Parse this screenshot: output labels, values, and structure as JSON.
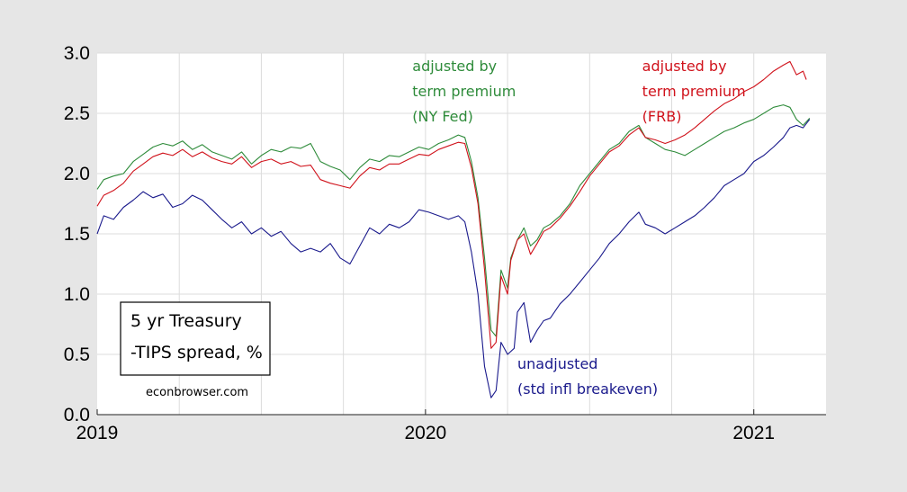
{
  "chart_data": {
    "type": "line",
    "xlim": [
      2019.0,
      2021.22
    ],
    "ylim": [
      0.0,
      3.0
    ],
    "grid": true,
    "x_ticks": [
      {
        "value": 2019,
        "label": "2019"
      },
      {
        "value": 2020,
        "label": "2020"
      },
      {
        "value": 2021,
        "label": "2021"
      }
    ],
    "y_ticks": [
      {
        "value": 0.0,
        "label": "0.0"
      },
      {
        "value": 0.5,
        "label": "0.5"
      },
      {
        "value": 1.0,
        "label": "1.0"
      },
      {
        "value": 1.5,
        "label": "1.5"
      },
      {
        "value": 2.0,
        "label": "2.0"
      },
      {
        "value": 2.5,
        "label": "2.5"
      },
      {
        "value": 3.0,
        "label": "3.0"
      }
    ],
    "series": [
      {
        "name": "adjusted by term premium (NY Fed)",
        "color": "#2e8b3a",
        "points": [
          [
            2019.0,
            1.87
          ],
          [
            2019.02,
            1.95
          ],
          [
            2019.05,
            1.98
          ],
          [
            2019.08,
            2.0
          ],
          [
            2019.11,
            2.1
          ],
          [
            2019.14,
            2.16
          ],
          [
            2019.17,
            2.22
          ],
          [
            2019.2,
            2.25
          ],
          [
            2019.23,
            2.23
          ],
          [
            2019.26,
            2.27
          ],
          [
            2019.29,
            2.2
          ],
          [
            2019.32,
            2.24
          ],
          [
            2019.35,
            2.18
          ],
          [
            2019.38,
            2.15
          ],
          [
            2019.41,
            2.12
          ],
          [
            2019.44,
            2.18
          ],
          [
            2019.47,
            2.08
          ],
          [
            2019.5,
            2.15
          ],
          [
            2019.53,
            2.2
          ],
          [
            2019.56,
            2.18
          ],
          [
            2019.59,
            2.22
          ],
          [
            2019.62,
            2.21
          ],
          [
            2019.65,
            2.25
          ],
          [
            2019.68,
            2.1
          ],
          [
            2019.71,
            2.06
          ],
          [
            2019.74,
            2.03
          ],
          [
            2019.77,
            1.95
          ],
          [
            2019.8,
            2.05
          ],
          [
            2019.83,
            2.12
          ],
          [
            2019.86,
            2.1
          ],
          [
            2019.89,
            2.15
          ],
          [
            2019.92,
            2.14
          ],
          [
            2019.95,
            2.18
          ],
          [
            2019.98,
            2.22
          ],
          [
            2020.01,
            2.2
          ],
          [
            2020.04,
            2.25
          ],
          [
            2020.07,
            2.28
          ],
          [
            2020.1,
            2.32
          ],
          [
            2020.12,
            2.3
          ],
          [
            2020.14,
            2.1
          ],
          [
            2020.16,
            1.8
          ],
          [
            2020.18,
            1.3
          ],
          [
            2020.2,
            0.7
          ],
          [
            2020.215,
            0.65
          ],
          [
            2020.23,
            1.2
          ],
          [
            2020.25,
            1.05
          ],
          [
            2020.26,
            1.3
          ],
          [
            2020.28,
            1.45
          ],
          [
            2020.3,
            1.55
          ],
          [
            2020.32,
            1.4
          ],
          [
            2020.34,
            1.45
          ],
          [
            2020.36,
            1.55
          ],
          [
            2020.38,
            1.58
          ],
          [
            2020.41,
            1.65
          ],
          [
            2020.44,
            1.75
          ],
          [
            2020.47,
            1.9
          ],
          [
            2020.5,
            2.0
          ],
          [
            2020.53,
            2.1
          ],
          [
            2020.56,
            2.2
          ],
          [
            2020.59,
            2.25
          ],
          [
            2020.62,
            2.35
          ],
          [
            2020.65,
            2.4
          ],
          [
            2020.67,
            2.3
          ],
          [
            2020.7,
            2.25
          ],
          [
            2020.73,
            2.2
          ],
          [
            2020.76,
            2.18
          ],
          [
            2020.79,
            2.15
          ],
          [
            2020.82,
            2.2
          ],
          [
            2020.85,
            2.25
          ],
          [
            2020.88,
            2.3
          ],
          [
            2020.91,
            2.35
          ],
          [
            2020.94,
            2.38
          ],
          [
            2020.97,
            2.42
          ],
          [
            2021.0,
            2.45
          ],
          [
            2021.03,
            2.5
          ],
          [
            2021.06,
            2.55
          ],
          [
            2021.09,
            2.57
          ],
          [
            2021.11,
            2.55
          ],
          [
            2021.13,
            2.45
          ],
          [
            2021.15,
            2.4
          ],
          [
            2021.17,
            2.46
          ]
        ]
      },
      {
        "name": "adjusted by term premium (FRB)",
        "color": "#d0121b",
        "points": [
          [
            2019.0,
            1.73
          ],
          [
            2019.02,
            1.82
          ],
          [
            2019.05,
            1.86
          ],
          [
            2019.08,
            1.92
          ],
          [
            2019.11,
            2.02
          ],
          [
            2019.14,
            2.08
          ],
          [
            2019.17,
            2.14
          ],
          [
            2019.2,
            2.17
          ],
          [
            2019.23,
            2.15
          ],
          [
            2019.26,
            2.2
          ],
          [
            2019.29,
            2.14
          ],
          [
            2019.32,
            2.18
          ],
          [
            2019.35,
            2.13
          ],
          [
            2019.38,
            2.1
          ],
          [
            2019.41,
            2.08
          ],
          [
            2019.44,
            2.14
          ],
          [
            2019.47,
            2.05
          ],
          [
            2019.5,
            2.1
          ],
          [
            2019.53,
            2.12
          ],
          [
            2019.56,
            2.08
          ],
          [
            2019.59,
            2.1
          ],
          [
            2019.62,
            2.06
          ],
          [
            2019.65,
            2.07
          ],
          [
            2019.68,
            1.95
          ],
          [
            2019.71,
            1.92
          ],
          [
            2019.74,
            1.9
          ],
          [
            2019.77,
            1.88
          ],
          [
            2019.8,
            1.98
          ],
          [
            2019.83,
            2.05
          ],
          [
            2019.86,
            2.03
          ],
          [
            2019.89,
            2.08
          ],
          [
            2019.92,
            2.08
          ],
          [
            2019.95,
            2.12
          ],
          [
            2019.98,
            2.16
          ],
          [
            2020.01,
            2.15
          ],
          [
            2020.04,
            2.2
          ],
          [
            2020.07,
            2.23
          ],
          [
            2020.1,
            2.26
          ],
          [
            2020.12,
            2.25
          ],
          [
            2020.14,
            2.05
          ],
          [
            2020.16,
            1.75
          ],
          [
            2020.18,
            1.2
          ],
          [
            2020.2,
            0.55
          ],
          [
            2020.215,
            0.6
          ],
          [
            2020.23,
            1.15
          ],
          [
            2020.25,
            1.0
          ],
          [
            2020.26,
            1.28
          ],
          [
            2020.28,
            1.45
          ],
          [
            2020.3,
            1.5
          ],
          [
            2020.32,
            1.33
          ],
          [
            2020.34,
            1.42
          ],
          [
            2020.36,
            1.52
          ],
          [
            2020.38,
            1.55
          ],
          [
            2020.41,
            1.63
          ],
          [
            2020.44,
            1.73
          ],
          [
            2020.47,
            1.85
          ],
          [
            2020.5,
            1.98
          ],
          [
            2020.53,
            2.08
          ],
          [
            2020.56,
            2.18
          ],
          [
            2020.59,
            2.23
          ],
          [
            2020.62,
            2.32
          ],
          [
            2020.65,
            2.38
          ],
          [
            2020.67,
            2.3
          ],
          [
            2020.7,
            2.28
          ],
          [
            2020.73,
            2.25
          ],
          [
            2020.76,
            2.28
          ],
          [
            2020.79,
            2.32
          ],
          [
            2020.82,
            2.38
          ],
          [
            2020.85,
            2.45
          ],
          [
            2020.88,
            2.52
          ],
          [
            2020.91,
            2.58
          ],
          [
            2020.94,
            2.62
          ],
          [
            2020.97,
            2.68
          ],
          [
            2021.0,
            2.72
          ],
          [
            2021.03,
            2.78
          ],
          [
            2021.06,
            2.85
          ],
          [
            2021.09,
            2.9
          ],
          [
            2021.11,
            2.93
          ],
          [
            2021.13,
            2.82
          ],
          [
            2021.15,
            2.85
          ],
          [
            2021.16,
            2.78
          ]
        ]
      },
      {
        "name": "unadjusted (std infl breakeven)",
        "color": "#1a1a8c",
        "points": [
          [
            2019.0,
            1.5
          ],
          [
            2019.02,
            1.65
          ],
          [
            2019.05,
            1.62
          ],
          [
            2019.08,
            1.72
          ],
          [
            2019.11,
            1.78
          ],
          [
            2019.14,
            1.85
          ],
          [
            2019.17,
            1.8
          ],
          [
            2019.2,
            1.83
          ],
          [
            2019.23,
            1.72
          ],
          [
            2019.26,
            1.75
          ],
          [
            2019.29,
            1.82
          ],
          [
            2019.32,
            1.78
          ],
          [
            2019.35,
            1.7
          ],
          [
            2019.38,
            1.62
          ],
          [
            2019.41,
            1.55
          ],
          [
            2019.44,
            1.6
          ],
          [
            2019.47,
            1.5
          ],
          [
            2019.5,
            1.55
          ],
          [
            2019.53,
            1.48
          ],
          [
            2019.56,
            1.52
          ],
          [
            2019.59,
            1.42
          ],
          [
            2019.62,
            1.35
          ],
          [
            2019.65,
            1.38
          ],
          [
            2019.68,
            1.35
          ],
          [
            2019.71,
            1.42
          ],
          [
            2019.74,
            1.3
          ],
          [
            2019.77,
            1.25
          ],
          [
            2019.8,
            1.4
          ],
          [
            2019.83,
            1.55
          ],
          [
            2019.86,
            1.5
          ],
          [
            2019.89,
            1.58
          ],
          [
            2019.92,
            1.55
          ],
          [
            2019.95,
            1.6
          ],
          [
            2019.98,
            1.7
          ],
          [
            2020.01,
            1.68
          ],
          [
            2020.04,
            1.65
          ],
          [
            2020.07,
            1.62
          ],
          [
            2020.1,
            1.65
          ],
          [
            2020.12,
            1.6
          ],
          [
            2020.14,
            1.35
          ],
          [
            2020.16,
            1.0
          ],
          [
            2020.18,
            0.4
          ],
          [
            2020.2,
            0.14
          ],
          [
            2020.215,
            0.2
          ],
          [
            2020.23,
            0.6
          ],
          [
            2020.25,
            0.5
          ],
          [
            2020.27,
            0.55
          ],
          [
            2020.28,
            0.85
          ],
          [
            2020.3,
            0.93
          ],
          [
            2020.32,
            0.6
          ],
          [
            2020.34,
            0.7
          ],
          [
            2020.36,
            0.78
          ],
          [
            2020.38,
            0.8
          ],
          [
            2020.41,
            0.92
          ],
          [
            2020.44,
            1.0
          ],
          [
            2020.47,
            1.1
          ],
          [
            2020.5,
            1.2
          ],
          [
            2020.53,
            1.3
          ],
          [
            2020.56,
            1.42
          ],
          [
            2020.59,
            1.5
          ],
          [
            2020.62,
            1.6
          ],
          [
            2020.65,
            1.68
          ],
          [
            2020.67,
            1.58
          ],
          [
            2020.7,
            1.55
          ],
          [
            2020.73,
            1.5
          ],
          [
            2020.76,
            1.55
          ],
          [
            2020.79,
            1.6
          ],
          [
            2020.82,
            1.65
          ],
          [
            2020.85,
            1.72
          ],
          [
            2020.88,
            1.8
          ],
          [
            2020.91,
            1.9
          ],
          [
            2020.94,
            1.95
          ],
          [
            2020.97,
            2.0
          ],
          [
            2021.0,
            2.1
          ],
          [
            2021.03,
            2.15
          ],
          [
            2021.06,
            2.22
          ],
          [
            2021.09,
            2.3
          ],
          [
            2021.11,
            2.38
          ],
          [
            2021.13,
            2.4
          ],
          [
            2021.15,
            2.38
          ],
          [
            2021.17,
            2.45
          ]
        ]
      }
    ],
    "annotations": [
      {
        "lines": [
          "adjusted by",
          "term premium",
          "(NY Fed)"
        ],
        "color": "#2e8b3a",
        "x": 2019.96,
        "y": 2.85
      },
      {
        "lines": [
          "adjusted by",
          "term premium",
          "(FRB)"
        ],
        "color": "#d0121b",
        "x": 2020.66,
        "y": 2.85
      },
      {
        "lines": [
          "unadjusted",
          "(std infl breakeven)"
        ],
        "color": "#1a1a8c",
        "x": 2020.28,
        "y": 0.38
      }
    ],
    "label_box": {
      "lines": [
        "5 yr Treasury",
        "-TIPS spread, %"
      ]
    },
    "source_text": "econbrowser.com"
  }
}
